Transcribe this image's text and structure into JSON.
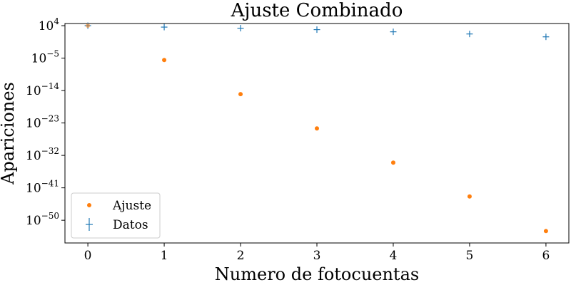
{
  "chart_data": {
    "type": "scatter",
    "title": "Ajuste Combinado",
    "xlabel": "Numero de fotocuentas",
    "ylabel": "Apariciones",
    "y_scale": "log",
    "xlim": [
      -0.3,
      6.3
    ],
    "ylim_exponent": [
      -56.3,
      4.6
    ],
    "x_ticks": [
      0,
      1,
      2,
      3,
      4,
      5,
      6
    ],
    "y_ticks": [
      {
        "exp": 4,
        "base": "10",
        "sup": "4"
      },
      {
        "exp": -5,
        "base": "10",
        "sup": "−5"
      },
      {
        "exp": -14,
        "base": "10",
        "sup": "−14"
      },
      {
        "exp": -23,
        "base": "10",
        "sup": "−23"
      },
      {
        "exp": -32,
        "base": "10",
        "sup": "−32"
      },
      {
        "exp": -41,
        "base": "10",
        "sup": "−41"
      },
      {
        "exp": -50,
        "base": "10",
        "sup": "−50"
      }
    ],
    "legend_position": "bottom-left",
    "grid": false,
    "series": [
      {
        "name": "Ajuste",
        "marker": "dot",
        "color": "#ff7f0e",
        "x": [
          0,
          1,
          2,
          3,
          4,
          5,
          6
        ],
        "y": [
          10000.0,
          3e-06,
          1e-15,
          3e-25,
          1e-34,
          4e-44,
          1e-53
        ]
      },
      {
        "name": "Datos",
        "marker": "errorbar",
        "color": "#1f77b4",
        "x": [
          0,
          1,
          2,
          3,
          4,
          5,
          6
        ],
        "y": [
          10000.0,
          4000.0,
          2000.0,
          800.0,
          200.0,
          50.0,
          8.0
        ]
      }
    ]
  }
}
